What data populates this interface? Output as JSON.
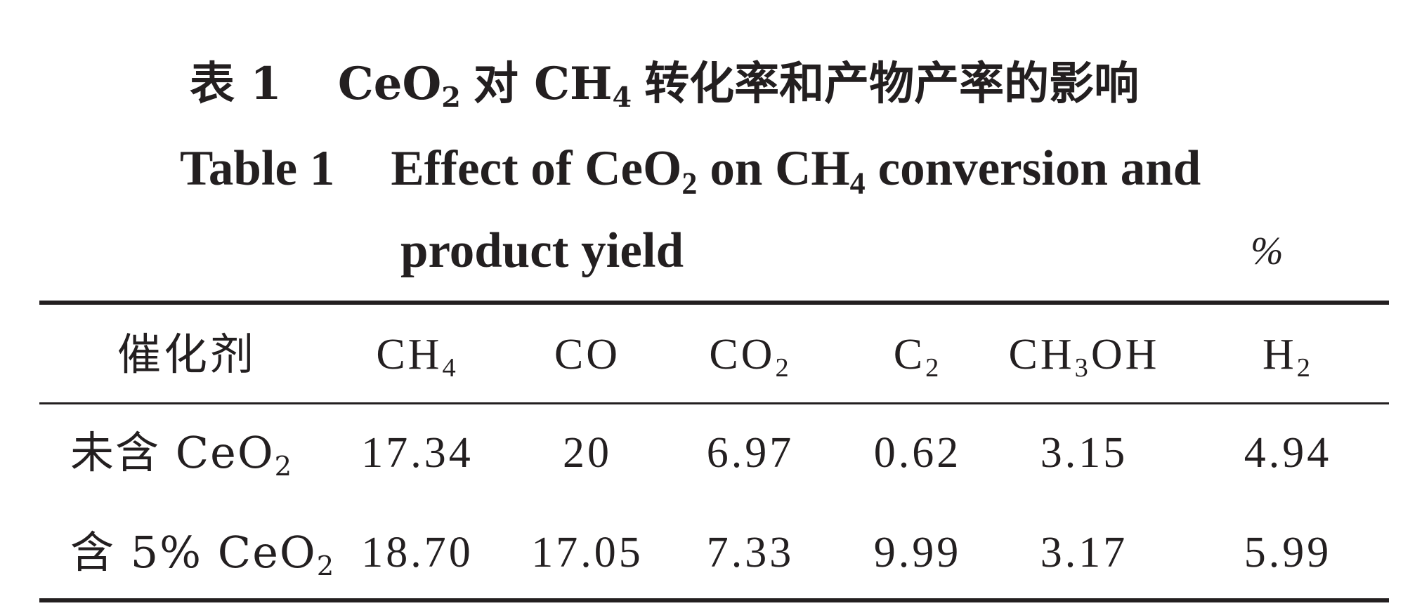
{
  "title": {
    "cn_prefix": "表 1",
    "cn_ceo2": "CeO",
    "cn_ceo2_sub": "2",
    "cn_mid": "对 CH",
    "cn_ch4_sub": "4",
    "cn_rest": "转化率和产物产率的影响",
    "en_prefix": "Table 1",
    "en_effect": "Effect of CeO",
    "en_ceo2_sub": "2",
    "en_mid": "on CH",
    "en_ch4_sub": "4",
    "en_rest": "conversion and",
    "en_line2": "product yield",
    "unit": "%"
  },
  "table": {
    "headers": [
      {
        "text": "催化剂",
        "sub": ""
      },
      {
        "text": "CH",
        "sub": "4"
      },
      {
        "text": "CO",
        "sub": ""
      },
      {
        "text": "CO",
        "sub": "2"
      },
      {
        "text": "C",
        "sub": "2"
      },
      {
        "text": "CH",
        "sub": "3",
        "tail": "OH"
      },
      {
        "text": "H",
        "sub": "2"
      }
    ],
    "rows": [
      {
        "catalyst": "未含 CeO",
        "catalyst_sub": "2",
        "values": [
          "17.34",
          "20",
          "6.97",
          "0.62",
          "3.15",
          "4.94"
        ]
      },
      {
        "catalyst": "含 5% CeO",
        "catalyst_sub": "2",
        "values": [
          "18.70",
          "17.05",
          "7.33",
          "9.99",
          "3.17",
          "5.99"
        ]
      }
    ]
  }
}
